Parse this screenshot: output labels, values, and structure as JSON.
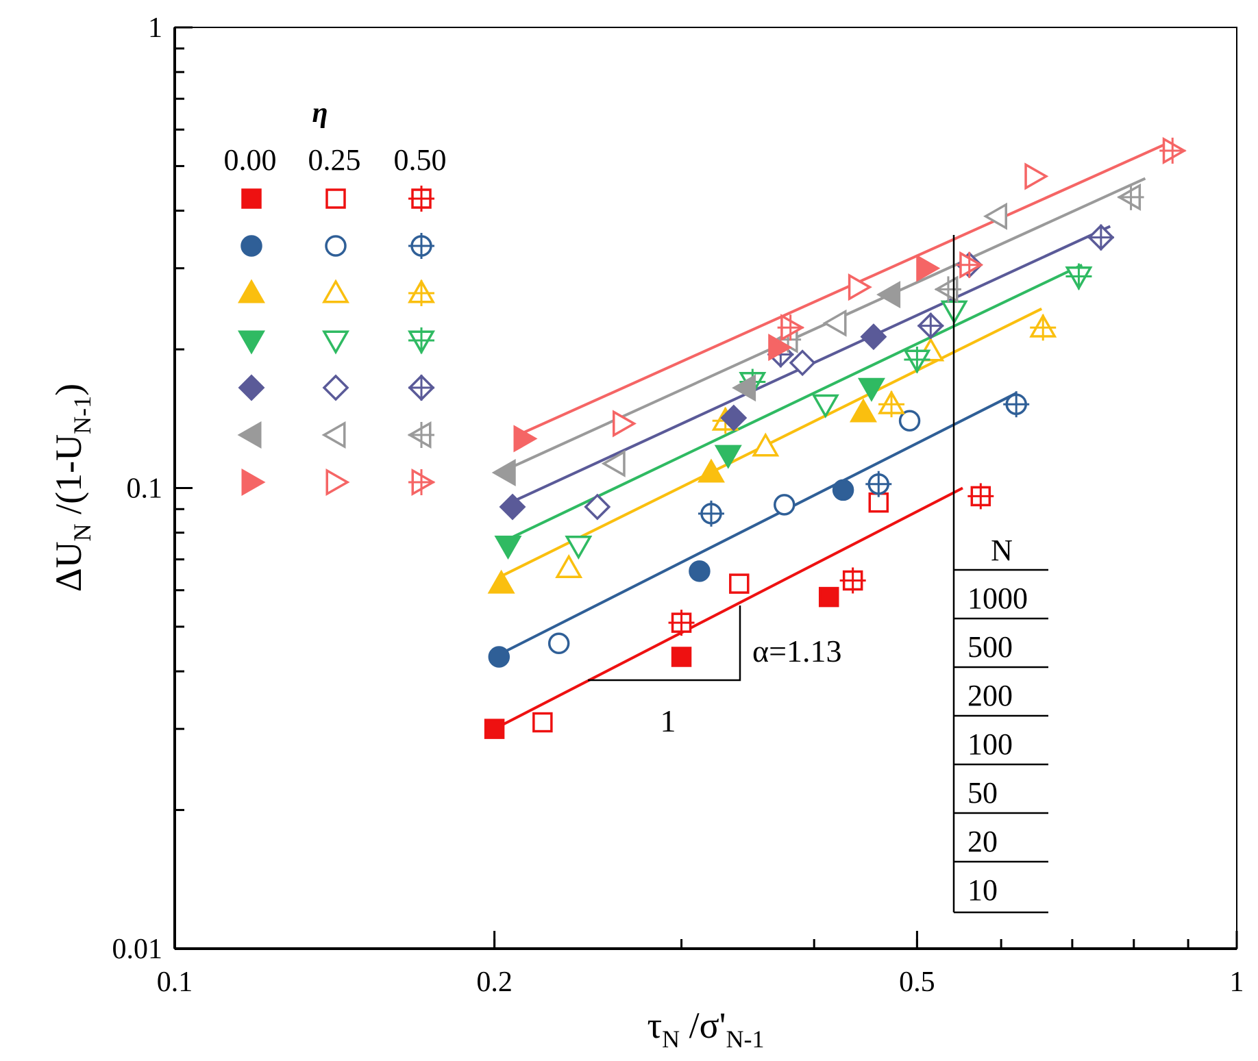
{
  "chart_data": {
    "type": "scatter",
    "x_scale": "log",
    "y_scale": "log",
    "xlim": [
      0.1,
      1
    ],
    "ylim": [
      0.01,
      1
    ],
    "xlabel": {
      "main": "τ",
      "sub": "N",
      "mid": " /σ'",
      "sub2": "N-1"
    },
    "ylabel": {
      "main": "ΔU",
      "sub": "N",
      "mid": " /(1-U",
      "sub2": "N-1",
      "end": ")"
    },
    "x_ticks": [
      {
        "value": 0.1,
        "label": "0.1"
      },
      {
        "value": 0.2,
        "label": "0.2"
      },
      {
        "value": 0.5,
        "label": "0.5"
      },
      {
        "value": 1,
        "label": "1"
      }
    ],
    "y_ticks": [
      {
        "value": 0.01,
        "label": "0.01"
      },
      {
        "value": 0.1,
        "label": "0.1"
      },
      {
        "value": 1,
        "label": "1"
      }
    ],
    "legend": {
      "title": "η",
      "columns": [
        "0.00",
        "0.25",
        "0.50"
      ],
      "position": "top-left"
    },
    "n_table": {
      "header": "N",
      "rows": [
        "1000",
        "500",
        "200",
        "100",
        "50",
        "20",
        "10"
      ]
    },
    "slope_annotation": {
      "label": "α=1.13",
      "run_label": "1"
    },
    "series": [
      {
        "color": "#ee1111",
        "shape": "square",
        "fit": [
          [
            0.2,
            0.03
          ],
          [
            0.552,
            0.1
          ]
        ],
        "points": {
          "0.00": [
            [
              0.2,
              0.03
            ],
            [
              0.3,
              0.043
            ],
            [
              0.413,
              0.058
            ]
          ],
          "0.25": [
            [
              0.222,
              0.031
            ],
            [
              0.34,
              0.062
            ],
            [
              0.46,
              0.093
            ]
          ],
          "0.50": [
            [
              0.3,
              0.051
            ],
            [
              0.435,
              0.063
            ],
            [
              0.574,
              0.096
            ]
          ]
        }
      },
      {
        "color": "#2f5f97",
        "shape": "circle",
        "fit": [
          [
            0.2,
            0.043
          ],
          [
            0.621,
            0.161
          ]
        ],
        "points": {
          "0.00": [
            [
              0.202,
              0.043
            ],
            [
              0.312,
              0.066
            ],
            [
              0.426,
              0.099
            ]
          ],
          "0.25": [
            [
              0.23,
              0.046
            ],
            [
              0.375,
              0.092
            ],
            [
              0.492,
              0.14
            ]
          ],
          "0.50": [
            [
              0.32,
              0.088
            ],
            [
              0.46,
              0.102
            ],
            [
              0.62,
              0.152
            ]
          ]
        }
      },
      {
        "color": "#fabf0f",
        "shape": "triangle-up",
        "fit": [
          [
            0.202,
            0.064
          ],
          [
            0.655,
            0.245
          ]
        ],
        "points": {
          "0.00": [
            [
              0.203,
              0.062
            ],
            [
              0.32,
              0.108
            ],
            [
              0.445,
              0.146
            ]
          ],
          "0.25": [
            [
              0.235,
              0.067
            ],
            [
              0.36,
              0.123
            ],
            [
              0.515,
              0.198
            ]
          ],
          "0.50": [
            [
              0.33,
              0.14
            ],
            [
              0.473,
              0.152
            ],
            [
              0.657,
              0.223
            ]
          ]
        }
      },
      {
        "color": "#2fba62",
        "shape": "triangle-down",
        "fit": [
          [
            0.205,
            0.077
          ],
          [
            0.715,
            0.305
          ]
        ],
        "points": {
          "0.00": [
            [
              0.206,
              0.075
            ],
            [
              0.332,
              0.118
            ],
            [
              0.453,
              0.165
            ]
          ],
          "0.25": [
            [
              0.24,
              0.075
            ],
            [
              0.41,
              0.152
            ],
            [
              0.542,
              0.243
            ]
          ],
          "0.50": [
            [
              0.35,
              0.17
            ],
            [
              0.5,
              0.19
            ],
            [
              0.71,
              0.288
            ]
          ]
        }
      },
      {
        "color": "#5a5a98",
        "shape": "diamond",
        "fit": [
          [
            0.205,
            0.092
          ],
          [
            0.76,
            0.37
          ]
        ],
        "points": {
          "0.00": [
            [
              0.208,
              0.091
            ],
            [
              0.336,
              0.142
            ],
            [
              0.455,
              0.213
            ]
          ],
          "0.25": [
            [
              0.25,
              0.091
            ],
            [
              0.39,
              0.187
            ],
            [
              0.56,
              0.305
            ]
          ],
          "0.50": [
            [
              0.372,
              0.195
            ],
            [
              0.515,
              0.225
            ],
            [
              0.745,
              0.35
            ]
          ]
        }
      },
      {
        "color": "#9a9a9a",
        "shape": "triangle-left",
        "fit": [
          [
            0.204,
            0.109
          ],
          [
            0.82,
            0.47
          ]
        ],
        "points": {
          "0.00": [
            [
              0.205,
              0.108
            ],
            [
              0.345,
              0.165
            ],
            [
              0.472,
              0.263
            ]
          ],
          "0.25": [
            [
              0.26,
              0.113
            ],
            [
              0.42,
              0.228
            ],
            [
              0.595,
              0.389
            ]
          ],
          "0.50": [
            [
              0.378,
              0.21
            ],
            [
              0.535,
              0.27
            ],
            [
              0.795,
              0.428
            ]
          ]
        }
      },
      {
        "color": "#f56565",
        "shape": "triangle-right",
        "fit": [
          [
            0.21,
            0.13
          ],
          [
            0.86,
            0.56
          ]
        ],
        "points": {
          "0.00": [
            [
              0.213,
              0.128
            ],
            [
              0.37,
              0.202
            ],
            [
              0.51,
              0.3
            ]
          ],
          "0.25": [
            [
              0.264,
              0.138
            ],
            [
              0.44,
              0.273
            ],
            [
              0.645,
              0.475
            ]
          ],
          "0.50": [
            [
              0.38,
              0.223
            ],
            [
              0.56,
              0.305
            ],
            [
              0.87,
              0.54
            ]
          ]
        }
      }
    ]
  }
}
